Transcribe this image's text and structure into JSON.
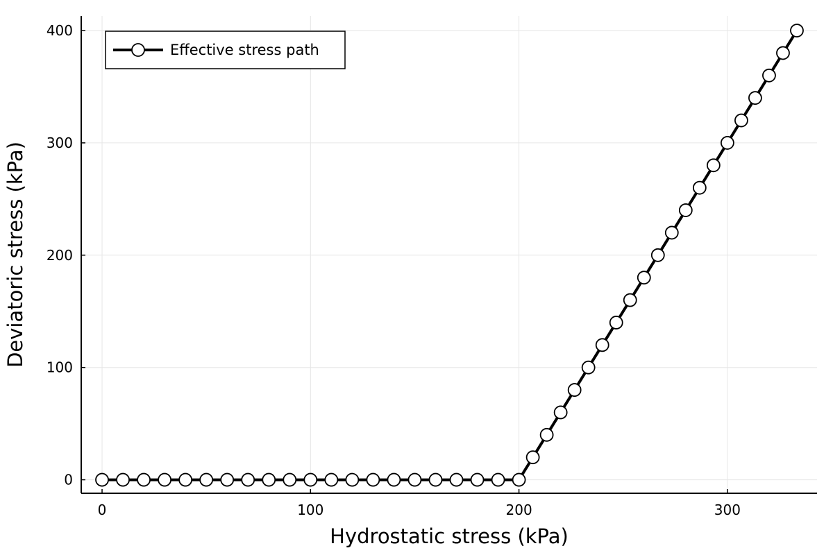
{
  "chart_data": {
    "type": "line",
    "title": "",
    "xlabel": "Hydrostatic stress (kPa)",
    "ylabel": "Deviatoric stress (kPa)",
    "xlim": [
      -10,
      343
    ],
    "ylim": [
      -12,
      413
    ],
    "xticks": [
      0,
      100,
      200,
      300
    ],
    "yticks": [
      0,
      100,
      200,
      300,
      400
    ],
    "grid": true,
    "legend_position": "top-left",
    "series": [
      {
        "name": "Effective stress path",
        "color": "#000000",
        "marker": "circle",
        "marker_fill": "#ffffff",
        "x": [
          0,
          10,
          20,
          30,
          40,
          50,
          60,
          70,
          80,
          90,
          100,
          110,
          120,
          130,
          140,
          150,
          160,
          170,
          180,
          190,
          200,
          206.67,
          213.33,
          220,
          226.67,
          233.33,
          240,
          246.67,
          253.33,
          260,
          266.67,
          273.33,
          280,
          286.67,
          293.33,
          300,
          306.67,
          313.33,
          320,
          326.67,
          333.33
        ],
        "y": [
          0,
          0,
          0,
          0,
          0,
          0,
          0,
          0,
          0,
          0,
          0,
          0,
          0,
          0,
          0,
          0,
          0,
          0,
          0,
          0,
          0,
          20,
          40,
          60,
          80,
          100,
          120,
          140,
          160,
          180,
          200,
          220,
          240,
          260,
          280,
          300,
          320,
          340,
          360,
          380,
          400
        ]
      }
    ]
  }
}
